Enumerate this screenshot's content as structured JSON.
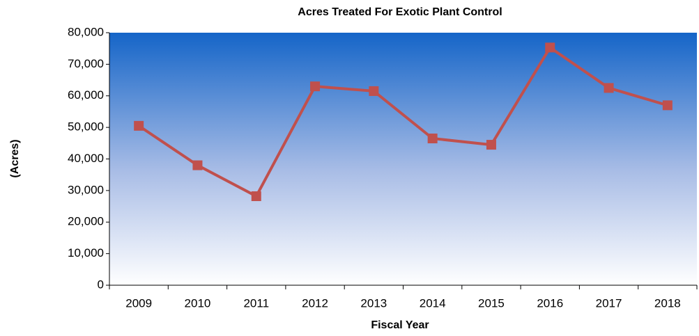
{
  "chart_data": {
    "type": "line",
    "title": "Acres Treated For Exotic Plant Control",
    "x_label": "Fiscal Year",
    "y_label": "(Acres)",
    "categories": [
      "2009",
      "2010",
      "2011",
      "2012",
      "2013",
      "2014",
      "2015",
      "2016",
      "2017",
      "2018"
    ],
    "values": [
      50500,
      38000,
      28200,
      63000,
      61500,
      46500,
      44500,
      75300,
      62500,
      57000
    ],
    "color": "#c0504d",
    "ylim": [
      0,
      80000
    ],
    "yticks": [
      0,
      {
        "value": 10000,
        "label": "10,000"
      },
      {
        "value": 20000,
        "label": "20,000"
      },
      {
        "value": 30000,
        "label": "30,000"
      },
      {
        "value": 40000,
        "label": "40,000"
      },
      {
        "value": 50000,
        "label": "50,000"
      },
      {
        "value": 60000,
        "label": "60,000"
      },
      {
        "value": 70000,
        "label": "70,000"
      },
      {
        "value": 80000,
        "label": "80,000"
      }
    ]
  }
}
